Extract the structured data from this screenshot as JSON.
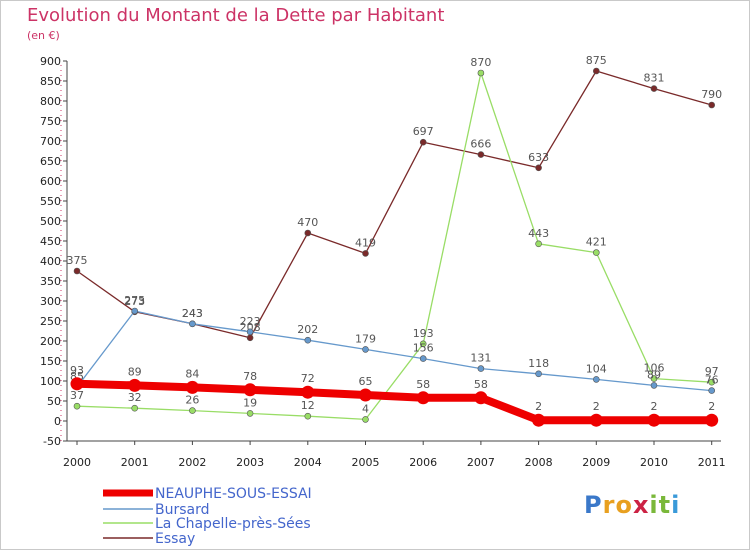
{
  "title": "Evolution du Montant de la Dette par Habitant",
  "unit": "(en €)",
  "logo": {
    "letters": [
      "P",
      "r",
      "o",
      "x",
      "i",
      "t",
      "i"
    ],
    "colors": [
      "#3a78c9",
      "#e8a020",
      "#e8a020",
      "#cc2244",
      "#7ab83a",
      "#7ab83a",
      "#3a9ad9"
    ]
  },
  "chart_data": {
    "type": "line",
    "title": "Evolution du Montant de la Dette par Habitant",
    "ylabel": "(en €)",
    "xlabel": "",
    "categories": [
      "2000",
      "2001",
      "2002",
      "2003",
      "2004",
      "2005",
      "2006",
      "2007",
      "2008",
      "2009",
      "2010",
      "2011"
    ],
    "ylim": [
      -50,
      900
    ],
    "yticks": [
      -50,
      0,
      50,
      100,
      150,
      200,
      250,
      300,
      350,
      400,
      450,
      500,
      550,
      600,
      650,
      700,
      750,
      800,
      850,
      900
    ],
    "grid": false,
    "legend_position": "bottom-left",
    "series": [
      {
        "name": "NEAUPHE-SOUS-ESSAI",
        "color": "#ee0000",
        "values": [
          93,
          89,
          84,
          78,
          72,
          65,
          58,
          58,
          2,
          2,
          2,
          2
        ]
      },
      {
        "name": "Bursard",
        "color": "#6699cc",
        "values": [
          85,
          275,
          243,
          223,
          202,
          179,
          156,
          131,
          118,
          104,
          89,
          76
        ]
      },
      {
        "name": "La Chapelle-près-Sées",
        "color": "#99dd66",
        "values": [
          37,
          32,
          26,
          19,
          12,
          4,
          193,
          870,
          443,
          421,
          106,
          97
        ]
      },
      {
        "name": "Essay",
        "color": "#7a2a2a",
        "values": [
          375,
          273,
          243,
          208,
          470,
          419,
          697,
          666,
          633,
          875,
          831,
          790
        ]
      }
    ]
  }
}
